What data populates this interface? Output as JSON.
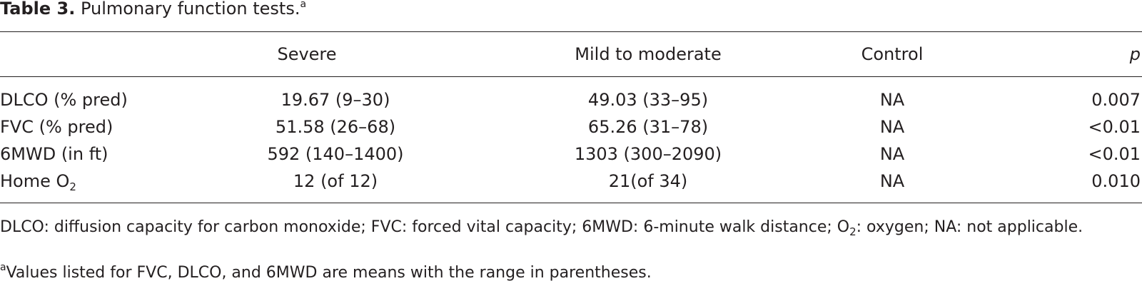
{
  "title": {
    "label": "Table 3.",
    "text": "Pulmonary function tests.",
    "note_mark": "a"
  },
  "table": {
    "columns": [
      "Severe",
      "Mild to moderate",
      "Control",
      "p"
    ],
    "rows": [
      {
        "label": "DLCO (% pred)",
        "cells": [
          "19.67 (9–30)",
          "49.03 (33–95)",
          "NA",
          "0.007"
        ]
      },
      {
        "label": "FVC (% pred)",
        "cells": [
          "51.58 (26–68)",
          "65.26 (31–78)",
          "NA",
          "<0.01"
        ]
      },
      {
        "label": "6MWD (in ft)",
        "cells": [
          "592 (140–1400)",
          "1303 (300–2090)",
          "NA",
          "<0.01"
        ]
      },
      {
        "label": "Home O",
        "label_sub": "2",
        "cells": [
          "12 (of 12)",
          "21(of 34)",
          "NA",
          "0.010"
        ]
      }
    ]
  },
  "footnotes": {
    "abbreviations": [
      "DLCO: diffusion capacity for carbon monoxide; FVC: forced vital capacity; 6MWD: 6-minute walk distance; O",
      "2",
      ": oxygen; NA: not applicable."
    ],
    "note": {
      "mark": "a",
      "text": "Values listed for FVC, DLCO, and 6MWD are means with the range in parentheses."
    }
  }
}
